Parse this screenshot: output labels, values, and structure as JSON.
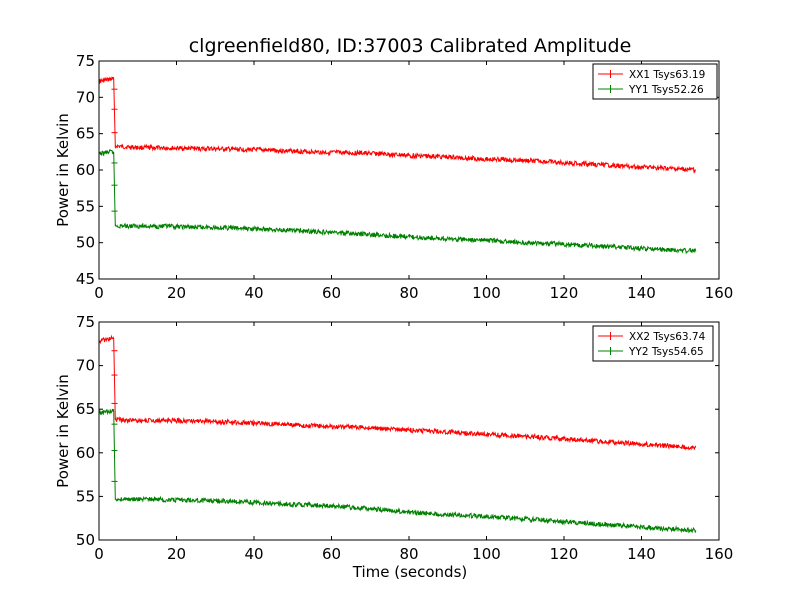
{
  "figure": {
    "title": "clgreenfield80, ID:37003 Calibrated Amplitude",
    "xlabel": "Time (seconds)"
  },
  "colors": {
    "xx": "#ff0000",
    "yy": "#008000"
  },
  "chart_data": [
    {
      "type": "line",
      "title": "clgreenfield80, ID:37003 Calibrated Amplitude",
      "xlabel": "",
      "ylabel": "Power in Kelvin",
      "xlim": [
        0,
        160
      ],
      "ylim": [
        45,
        75
      ],
      "xticks": [
        "0",
        "20",
        "40",
        "60",
        "80",
        "100",
        "120",
        "140",
        "160"
      ],
      "yticks": [
        "45",
        "50",
        "55",
        "60",
        "65",
        "70",
        "75"
      ],
      "grid": false,
      "legend": "top-right",
      "series": [
        {
          "name": "XX1 Tsys63.19",
          "color": "#ff0000",
          "x": [
            0,
            1,
            2,
            3,
            3.8,
            4.2,
            6,
            10,
            20,
            30,
            40,
            50,
            60,
            70,
            80,
            90,
            100,
            110,
            120,
            130,
            140,
            150,
            154
          ],
          "y": [
            72.2,
            72.3,
            72.4,
            72.5,
            72.5,
            63.3,
            63.2,
            63.1,
            63.0,
            62.9,
            62.8,
            62.6,
            62.4,
            62.3,
            62.0,
            61.8,
            61.5,
            61.3,
            61.0,
            60.7,
            60.4,
            60.1,
            60.0
          ]
        },
        {
          "name": "YY1 Tsys52.26",
          "color": "#008000",
          "x": [
            0,
            1,
            2,
            3,
            3.8,
            4.2,
            6,
            10,
            20,
            30,
            40,
            50,
            60,
            70,
            80,
            90,
            100,
            110,
            120,
            130,
            140,
            150,
            154
          ],
          "y": [
            62.2,
            62.3,
            62.4,
            62.5,
            62.5,
            52.3,
            52.3,
            52.3,
            52.2,
            52.1,
            51.9,
            51.7,
            51.4,
            51.1,
            50.8,
            50.5,
            50.3,
            50.0,
            49.8,
            49.5,
            49.2,
            48.9,
            48.9
          ]
        }
      ]
    },
    {
      "type": "line",
      "title": "",
      "xlabel": "Time (seconds)",
      "ylabel": "Power in Kelvin",
      "xlim": [
        0,
        160
      ],
      "ylim": [
        50,
        75
      ],
      "xticks": [
        "0",
        "20",
        "40",
        "60",
        "80",
        "100",
        "120",
        "140",
        "160"
      ],
      "yticks": [
        "50",
        "55",
        "60",
        "65",
        "70",
        "75"
      ],
      "grid": false,
      "legend": "top-right",
      "series": [
        {
          "name": "XX2 Tsys63.74",
          "color": "#ff0000",
          "x": [
            0,
            1,
            2,
            3,
            3.8,
            4.2,
            6,
            10,
            20,
            30,
            40,
            50,
            60,
            70,
            80,
            90,
            100,
            110,
            120,
            130,
            140,
            150,
            154
          ],
          "y": [
            72.8,
            72.9,
            73.0,
            73.1,
            73.1,
            63.8,
            63.8,
            63.7,
            63.7,
            63.6,
            63.4,
            63.2,
            63.0,
            62.9,
            62.6,
            62.4,
            62.1,
            61.9,
            61.6,
            61.3,
            61.0,
            60.7,
            60.6
          ]
        },
        {
          "name": "YY2 Tsys54.65",
          "color": "#008000",
          "x": [
            0,
            1,
            2,
            3,
            3.8,
            4.2,
            6,
            10,
            20,
            30,
            40,
            50,
            60,
            70,
            80,
            90,
            100,
            110,
            120,
            130,
            140,
            150,
            154
          ],
          "y": [
            64.5,
            64.6,
            64.7,
            64.8,
            64.8,
            54.7,
            54.7,
            54.7,
            54.6,
            54.5,
            54.3,
            54.1,
            53.9,
            53.6,
            53.2,
            52.9,
            52.7,
            52.4,
            52.1,
            51.8,
            51.5,
            51.2,
            51.1
          ]
        }
      ]
    }
  ]
}
